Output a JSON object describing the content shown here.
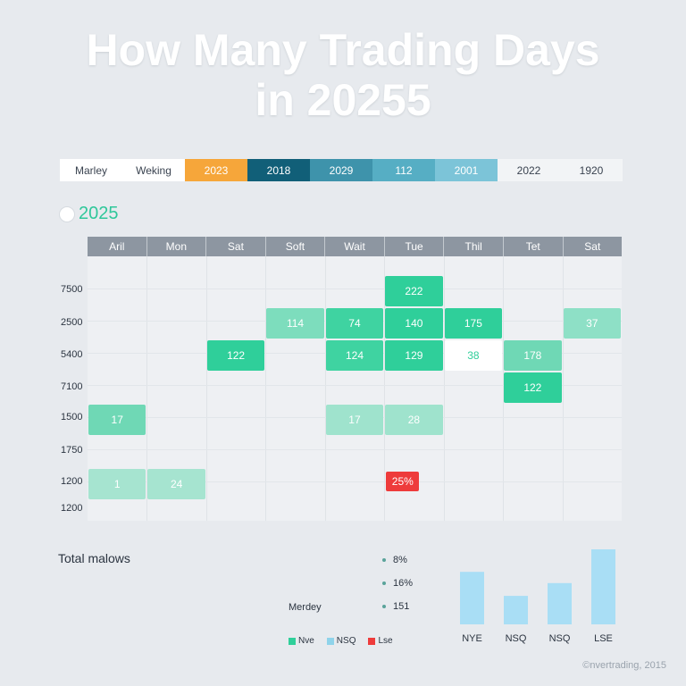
{
  "title_line1": "How Many Trading Days",
  "title_line2": "in 20255",
  "tabs": [
    {
      "label": "Marley",
      "bg": "#ffffff",
      "color": "#3a4350"
    },
    {
      "label": "Weking",
      "bg": "#ffffff",
      "color": "#3a4350"
    },
    {
      "label": "2023",
      "bg": "#f6a63a",
      "color": "#ffffff"
    },
    {
      "label": "2018",
      "bg": "#115f78",
      "color": "#ffffff"
    },
    {
      "label": "2029",
      "bg": "#3e93ab",
      "color": "#ffffff"
    },
    {
      "label": "112",
      "bg": "#56aec4",
      "color": "#ffffff"
    },
    {
      "label": "2001",
      "bg": "#7cc4d8",
      "color": "#ffffff"
    },
    {
      "label": "2022",
      "bg": "#f2f4f6",
      "color": "#3a4350"
    },
    {
      "label": "1920",
      "bg": "#f2f4f6",
      "color": "#3a4350"
    }
  ],
  "year_label": "2025",
  "chart_data": {
    "type": "heatmap",
    "title": "How Many Trading Days in 20255",
    "columns": [
      "Aril",
      "Mon",
      "Sat",
      "Soft",
      "Wait",
      "Tue",
      "Thil",
      "Tet",
      "Sat"
    ],
    "rows": [
      "7500",
      "2500",
      "5400",
      "7100",
      "1500",
      "1750",
      "1200",
      "1200"
    ],
    "cells": [
      {
        "row": 0,
        "col": 5,
        "value": "222",
        "color": "#2fcf9a"
      },
      {
        "row": 1,
        "col": 3,
        "value": "114",
        "color": "#7dddbd"
      },
      {
        "row": 1,
        "col": 4,
        "value": "74",
        "color": "#3fd3a1"
      },
      {
        "row": 1,
        "col": 5,
        "value": "140",
        "color": "#2fcf9a"
      },
      {
        "row": 1,
        "col": 6,
        "value": "175",
        "color": "#2fcf9a"
      },
      {
        "row": 1,
        "col": 8,
        "value": "37",
        "color": "#8ee0c6"
      },
      {
        "row": 2,
        "col": 2,
        "value": "122",
        "color": "#2fcf9a"
      },
      {
        "row": 2,
        "col": 4,
        "value": "124",
        "color": "#3fd3a1"
      },
      {
        "row": 2,
        "col": 5,
        "value": "129",
        "color": "#2fcf9a"
      },
      {
        "row": 2,
        "col": 6,
        "value": "38",
        "color": "#ffffff",
        "text_color": "#2fcf9a"
      },
      {
        "row": 2,
        "col": 7,
        "value": "178",
        "color": "#6fd8b5"
      },
      {
        "row": 3,
        "col": 7,
        "value": "122",
        "color": "#2fcf9a"
      },
      {
        "row": 4,
        "col": 0,
        "value": "17",
        "color": "#6fd8b5"
      },
      {
        "row": 4,
        "col": 4,
        "value": "17",
        "color": "#9fe3cd"
      },
      {
        "row": 4,
        "col": 5,
        "value": "28",
        "color": "#9fe3cd"
      },
      {
        "row": 6,
        "col": 0,
        "value": "1",
        "color": "#a6e4d0"
      },
      {
        "row": 6,
        "col": 1,
        "value": "24",
        "color": "#a6e4d0"
      },
      {
        "row": 6,
        "col": 5,
        "value": "25%",
        "color": "#ee3b3b",
        "small": true
      }
    ]
  },
  "legend_title": "Total malows",
  "minor_label": "Merdey",
  "percentages": [
    "8%",
    "16%",
    "151"
  ],
  "legend": [
    {
      "label": "Nve",
      "color": "#2fcf9a"
    },
    {
      "label": "NSQ",
      "color": "#8fd3ea"
    },
    {
      "label": "Lse",
      "color": "#ee3b3b"
    }
  ],
  "bar_chart": {
    "type": "bar",
    "categories": [
      "NYE",
      "NSQ",
      "NSQ",
      "LSE"
    ],
    "values": [
      70,
      38,
      55,
      100
    ],
    "color": "#a9def5"
  },
  "footer": "©nvertrading, 2015"
}
